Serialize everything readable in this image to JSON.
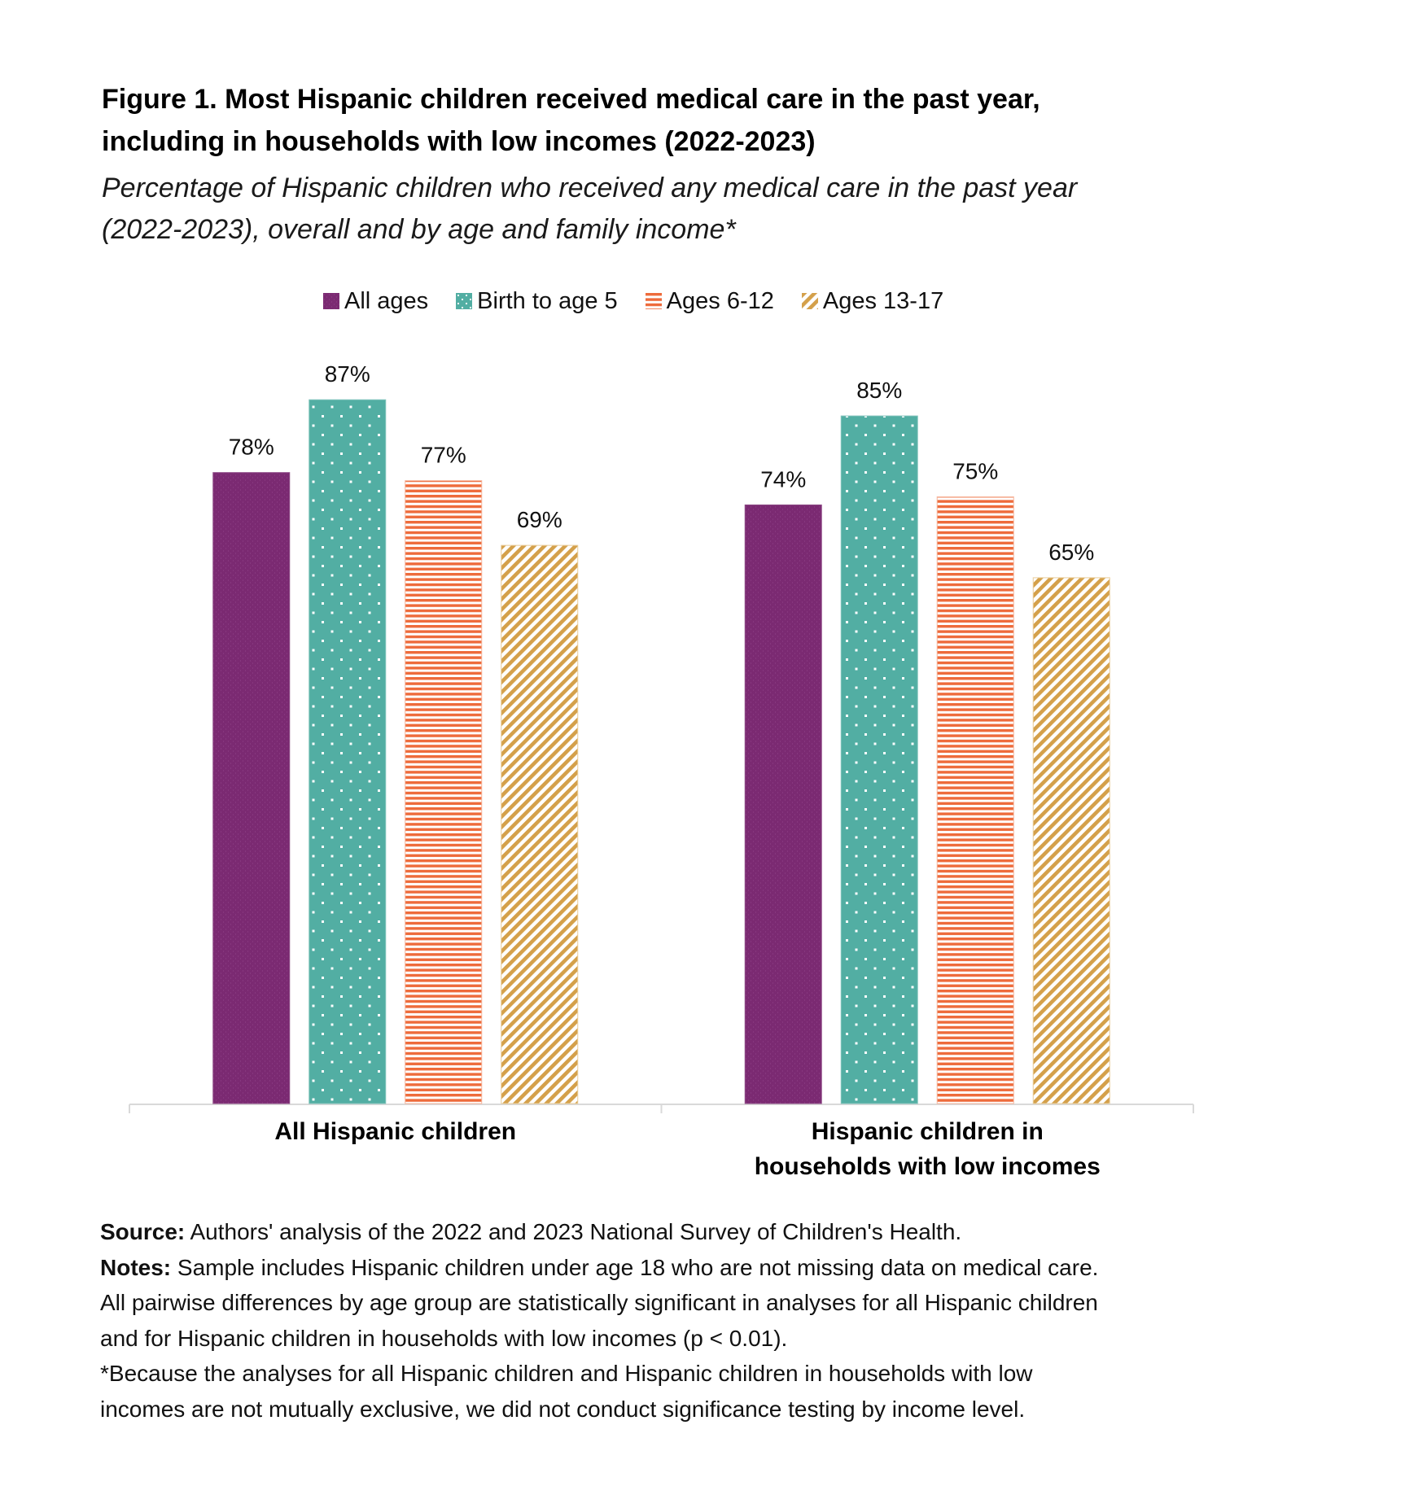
{
  "figure": {
    "title_line1": "Figure 1. Most Hispanic children received medical care in the past year,",
    "title_line2": "including in households with low incomes (2022-2023)",
    "subtitle_line1": "Percentage of Hispanic children who received any medical care in the past year",
    "subtitle_line2": "(2022-2023), overall and by age and family income*"
  },
  "legend": [
    {
      "label": "All ages",
      "pattern": "solid",
      "color": "#7B2A72"
    },
    {
      "label": "Birth to age 5",
      "pattern": "dots",
      "color": "#52AEA3"
    },
    {
      "label": "Ages 6-12",
      "pattern": "horizontal-stripes",
      "color": "#EE6B3B"
    },
    {
      "label": "Ages 13-17",
      "pattern": "diagonal-stripes",
      "color": "#D4A04A"
    }
  ],
  "chart_data": {
    "type": "bar",
    "title": "Figure 1. Most Hispanic children received medical care in the past year, including in households with low incomes (2022-2023)",
    "subtitle": "Percentage of Hispanic children who received any medical care in the past year (2022-2023), overall and by age and family income*",
    "categories": [
      "All Hispanic children",
      "Hispanic children in households with low incomes"
    ],
    "category_label_lines": [
      [
        "All Hispanic children"
      ],
      [
        "Hispanic children in",
        "households with low incomes"
      ]
    ],
    "series": [
      {
        "name": "All ages",
        "values": [
          78,
          74
        ],
        "labels": [
          "78%",
          "74%"
        ]
      },
      {
        "name": "Birth to age 5",
        "values": [
          87,
          85
        ],
        "labels": [
          "87%",
          "85%"
        ]
      },
      {
        "name": "Ages 6-12",
        "values": [
          77,
          75
        ],
        "labels": [
          "77%",
          "75%"
        ]
      },
      {
        "name": "Ages 13-17",
        "values": [
          69,
          65
        ],
        "labels": [
          "69%",
          "65%"
        ]
      }
    ],
    "xlabel": "",
    "ylabel": "",
    "ylim": [
      0,
      100
    ],
    "grid": false,
    "legend_position": "top-center",
    "value_format": "percent"
  },
  "footnotes": {
    "source_label": "Source:",
    "source_text": " Authors' analysis of the 2022 and 2023 National Survey of Children's Health.",
    "notes_label": "Notes:",
    "notes_text": " Sample includes Hispanic children under age 18 who are not missing data on medical care.",
    "notes_line2": "All pairwise differences by age group are statistically significant in analyses for all Hispanic children",
    "notes_line3": "and for Hispanic children in households with low incomes (p < 0.01).",
    "asterisk_line1": "*Because the analyses for all Hispanic children and Hispanic children in households with low",
    "asterisk_line2": "incomes are not mutually exclusive, we did not conduct significance testing by income level."
  }
}
